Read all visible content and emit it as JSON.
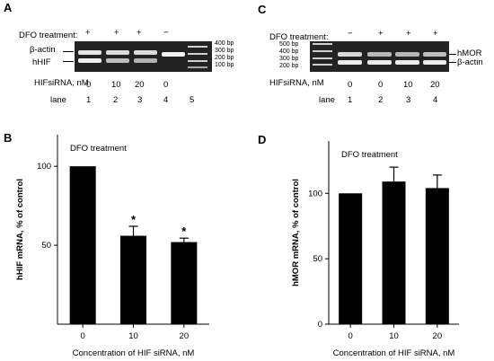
{
  "panel_a": {
    "letter": "A",
    "treatment_label": "DFO treatment:",
    "treatment_marks": [
      "+",
      "+",
      "+",
      "−"
    ],
    "band_labels": [
      "β-actin",
      "hHIF"
    ],
    "size_markers": [
      "400 bp",
      "300 bp",
      "200 bp",
      "100 bp"
    ],
    "sirna_label": "HIFsiRNA, nM",
    "sirna_values": [
      "0",
      "10",
      "20",
      "0"
    ],
    "lane_label": "lane",
    "lanes": [
      "1",
      "2",
      "3",
      "4",
      "5"
    ]
  },
  "panel_c": {
    "letter": "C",
    "treatment_label": "DFO treatment:",
    "treatment_marks": [
      "−",
      "+",
      "+",
      "+"
    ],
    "size_markers": [
      "500 bp",
      "400 bp",
      "300 bp",
      "200 bp"
    ],
    "band_labels": [
      "hMOR",
      "β-actin"
    ],
    "sirna_label": "HIFsiRNA, nM",
    "sirna_values": [
      "0",
      "0",
      "10",
      "20"
    ],
    "lane_label": "lane",
    "lanes": [
      "1",
      "2",
      "3",
      "4"
    ]
  },
  "chart_data": [
    {
      "panel": "B",
      "type": "bar",
      "annotation": "DFO treatment",
      "categories": [
        "0",
        "10",
        "20"
      ],
      "values": [
        100,
        56,
        52
      ],
      "errors": [
        0,
        6,
        2.5
      ],
      "significance": [
        "",
        "*",
        "*"
      ],
      "ylim": [
        0,
        120
      ],
      "yticks": [
        50,
        100
      ],
      "ytick_labels": [
        "50",
        "100"
      ],
      "xlabel": "Concentration of HIF siRNA, nM",
      "ylabel": "hHIF mRNA, % of control",
      "bar_color": "#000000"
    },
    {
      "panel": "D",
      "type": "bar",
      "annotation": "DFO treatment",
      "categories": [
        "0",
        "10",
        "20"
      ],
      "values": [
        100,
        109,
        104
      ],
      "errors": [
        0,
        11,
        10
      ],
      "significance": [
        "",
        "",
        ""
      ],
      "ylim": [
        0,
        140
      ],
      "yticks": [
        0,
        50,
        100
      ],
      "ytick_labels": [
        "0",
        "50",
        "100"
      ],
      "xlabel": "Concentration of HIF siRNA, nM",
      "ylabel": "hMOR mRNA, % of control",
      "bar_color": "#000000"
    }
  ]
}
